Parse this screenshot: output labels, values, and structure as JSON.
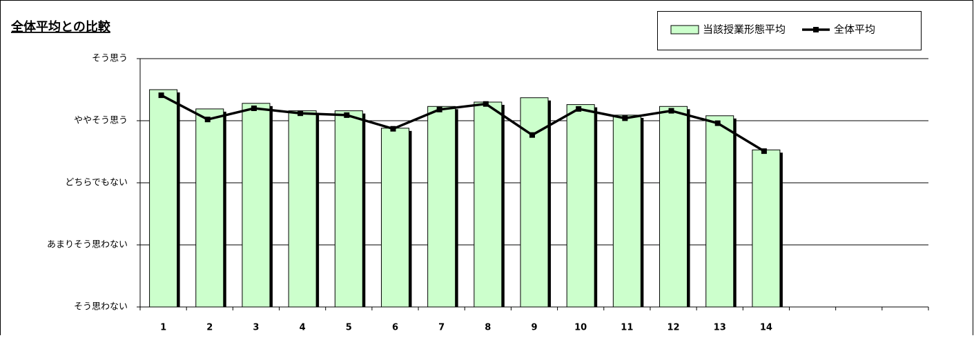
{
  "chart_data": {
    "type": "bar",
    "title": "全体平均との比較",
    "categories": [
      "1",
      "2",
      "3",
      "4",
      "5",
      "6",
      "7",
      "8",
      "9",
      "10",
      "11",
      "12",
      "13",
      "14",
      null,
      null,
      null
    ],
    "series": [
      {
        "name": "当該授業形態平均",
        "type": "bar",
        "color": "#ccffcc",
        "values": [
          4.5,
          4.19,
          4.28,
          4.16,
          4.16,
          3.88,
          4.23,
          4.3,
          4.37,
          4.26,
          4.09,
          4.23,
          4.08,
          3.53,
          null,
          null,
          null
        ]
      },
      {
        "name": "全体平均",
        "type": "line",
        "color": "#000000",
        "values": [
          4.41,
          4.02,
          4.2,
          4.12,
          4.09,
          3.87,
          4.18,
          4.27,
          3.77,
          4.19,
          4.04,
          4.16,
          3.96,
          3.51,
          null,
          null,
          null
        ]
      }
    ],
    "ylim": [
      1,
      5
    ],
    "yticks": [
      {
        "value": 1,
        "label": "そう思わない"
      },
      {
        "value": 2,
        "label": "あまりそう思わない"
      },
      {
        "value": 3,
        "label": "どちらでもない"
      },
      {
        "value": 4,
        "label": "ややそう思う"
      },
      {
        "value": 5,
        "label": "そう思う"
      }
    ],
    "grid": true,
    "legend": "top-right"
  }
}
